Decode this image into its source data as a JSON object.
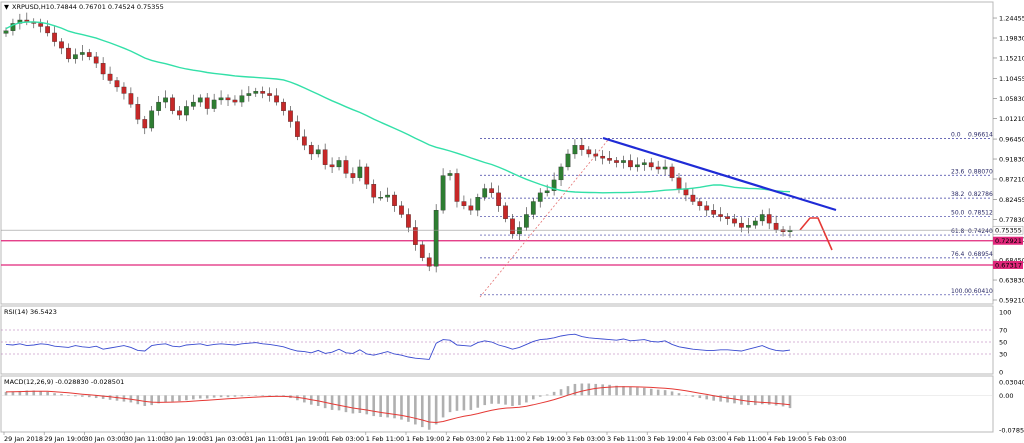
{
  "header": {
    "symbol": "XRPUSD,H1",
    "ohlc": "0.74844 0.76701 0.74524 0.75355"
  },
  "rsi_header": "RSI(14) 36.5423",
  "macd_header": "MACD(12,26,9) -0.028830 -0.028501",
  "colors": {
    "bull": "#2e7d32",
    "bear": "#c62828",
    "ma": "#33e0a8",
    "trendline": "#1f2bd6",
    "support": "#e0267a",
    "fib": "#3a3aa0",
    "rsi": "#3a4bd0",
    "macd_signal": "#e53935",
    "macd_hist": "#b0b0b0"
  },
  "chart_data": [
    {
      "type": "candlestick",
      "price_axis": [
        "1.24455",
        "1.19830",
        "1.15210",
        "1.10455",
        "1.05830",
        "1.01210",
        "0.96450",
        "0.91830",
        "0.87210",
        "0.82455",
        "0.77830",
        "0.73210",
        "0.68450",
        "0.63830",
        "0.59210"
      ],
      "ylim": [
        0.5921,
        1.2446
      ],
      "time_axis": [
        "29 Jan 2018",
        "29 Jan 19:00",
        "30 Jan 03:00",
        "30 Jan 11:00",
        "30 Jan 19:00",
        "31 Jan 03:00",
        "31 Jan 11:00",
        "31 Jan 19:00",
        "1 Feb 03:00",
        "1 Feb 11:00",
        "1 Feb 19:00",
        "2 Feb 03:00",
        "2 Feb 11:00",
        "2 Feb 19:00",
        "3 Feb 03:00",
        "3 Feb 11:00",
        "3 Feb 19:00",
        "4 Feb 03:00",
        "4 Feb 11:00",
        "4 Feb 19:00",
        "5 Feb 03:00"
      ],
      "current_price": "0.75355",
      "support_levels": [
        {
          "label": "0.72921",
          "value": 0.72921
        },
        {
          "label": "0.67317",
          "value": 0.67317
        }
      ],
      "fibonacci": [
        {
          "label": "0.0",
          "price": "0.96614",
          "value": 0.96614
        },
        {
          "label": "23.6",
          "price": "0.88070",
          "value": 0.8807
        },
        {
          "label": "38.2",
          "price": "0.82786",
          "value": 0.82786
        },
        {
          "label": "50.0",
          "price": "0.78512",
          "value": 0.78512
        },
        {
          "label": "61.8",
          "price": "0.74240",
          "value": 0.7424
        },
        {
          "label": "76.4",
          "price": "0.68954",
          "value": 0.68954
        },
        {
          "label": "100.0",
          "price": "0.60410",
          "value": 0.6041
        }
      ],
      "closes": [
        1.215,
        1.232,
        1.24,
        1.236,
        1.232,
        1.225,
        1.21,
        1.19,
        1.175,
        1.15,
        1.16,
        1.165,
        1.155,
        1.14,
        1.115,
        1.1,
        1.085,
        1.07,
        1.045,
        1.01,
        0.99,
        1.03,
        1.05,
        1.06,
        1.03,
        1.02,
        1.04,
        1.05,
        1.06,
        1.035,
        1.055,
        1.06,
        1.055,
        1.05,
        1.065,
        1.07,
        1.075,
        1.07,
        1.065,
        1.05,
        1.03,
        1.005,
        0.97,
        0.95,
        0.93,
        0.94,
        0.905,
        0.9,
        0.915,
        0.885,
        0.875,
        0.9,
        0.86,
        0.83,
        0.83,
        0.835,
        0.81,
        0.79,
        0.76,
        0.72,
        0.69,
        0.67,
        0.8,
        0.88,
        0.885,
        0.82,
        0.81,
        0.8,
        0.83,
        0.85,
        0.84,
        0.81,
        0.78,
        0.745,
        0.76,
        0.79,
        0.82,
        0.84,
        0.845,
        0.87,
        0.9,
        0.93,
        0.95,
        0.94,
        0.93,
        0.925,
        0.92,
        0.915,
        0.91,
        0.915,
        0.9,
        0.905,
        0.91,
        0.9,
        0.895,
        0.9,
        0.875,
        0.85,
        0.835,
        0.82,
        0.81,
        0.8,
        0.79,
        0.785,
        0.78,
        0.77,
        0.76,
        0.765,
        0.775,
        0.79,
        0.77,
        0.755,
        0.75,
        0.753
      ]
    },
    {
      "type": "line",
      "name": "RSI(14)",
      "value": "36.5423",
      "ylim": [
        0,
        100
      ],
      "levels": [
        70,
        50,
        30
      ],
      "axis": [
        "100",
        "70",
        "50",
        "30",
        "0"
      ],
      "values": [
        46,
        45,
        47,
        44,
        45,
        47,
        46,
        43,
        42,
        41,
        44,
        42,
        41,
        43,
        38,
        40,
        42,
        44,
        41,
        36,
        35,
        44,
        46,
        47,
        43,
        42,
        45,
        46,
        47,
        44,
        46,
        47,
        46,
        45,
        47,
        48,
        49,
        47,
        46,
        44,
        42,
        38,
        35,
        34,
        32,
        36,
        31,
        33,
        38,
        32,
        31,
        37,
        30,
        28,
        31,
        34,
        30,
        28,
        25,
        23,
        22,
        21,
        48,
        54,
        53,
        45,
        44,
        43,
        49,
        52,
        50,
        45,
        42,
        38,
        41,
        46,
        51,
        54,
        55,
        57,
        60,
        62,
        63,
        59,
        57,
        56,
        55,
        54,
        53,
        55,
        52,
        53,
        54,
        51,
        50,
        52,
        46,
        42,
        40,
        38,
        37,
        36,
        36,
        37,
        37,
        36,
        35,
        38,
        41,
        44,
        39,
        36,
        35,
        36.5
      ]
    },
    {
      "type": "bar",
      "name": "MACD(12,26,9)",
      "ylim": [
        -0.07856,
        0.03041
      ],
      "axis": [
        "0.030406",
        "0.00",
        "-0.078541"
      ],
      "macd": [
        0.008,
        0.009,
        0.01,
        0.011,
        0.011,
        0.01,
        0.008,
        0.005,
        0.003,
        0.0,
        -0.002,
        -0.003,
        -0.004,
        -0.006,
        -0.008,
        -0.01,
        -0.012,
        -0.014,
        -0.016,
        -0.02,
        -0.024,
        -0.022,
        -0.018,
        -0.015,
        -0.014,
        -0.013,
        -0.011,
        -0.009,
        -0.007,
        -0.007,
        -0.005,
        -0.004,
        -0.004,
        -0.003,
        -0.002,
        -0.001,
        0.0,
        0.0,
        0.0,
        -0.001,
        -0.003,
        -0.006,
        -0.011,
        -0.016,
        -0.021,
        -0.024,
        -0.029,
        -0.033,
        -0.034,
        -0.038,
        -0.041,
        -0.04,
        -0.043,
        -0.047,
        -0.049,
        -0.05,
        -0.052,
        -0.055,
        -0.06,
        -0.066,
        -0.072,
        -0.078,
        -0.066,
        -0.05,
        -0.038,
        -0.035,
        -0.034,
        -0.033,
        -0.028,
        -0.022,
        -0.019,
        -0.019,
        -0.021,
        -0.024,
        -0.022,
        -0.016,
        -0.009,
        -0.003,
        0.002,
        0.008,
        0.014,
        0.021,
        0.026,
        0.027,
        0.027,
        0.026,
        0.025,
        0.024,
        0.022,
        0.021,
        0.019,
        0.018,
        0.017,
        0.015,
        0.013,
        0.012,
        0.009,
        0.005,
        0.001,
        -0.003,
        -0.006,
        -0.009,
        -0.012,
        -0.014,
        -0.016,
        -0.018,
        -0.021,
        -0.022,
        -0.022,
        -0.02,
        -0.021,
        -0.023,
        -0.025,
        -0.0288
      ]
    }
  ]
}
